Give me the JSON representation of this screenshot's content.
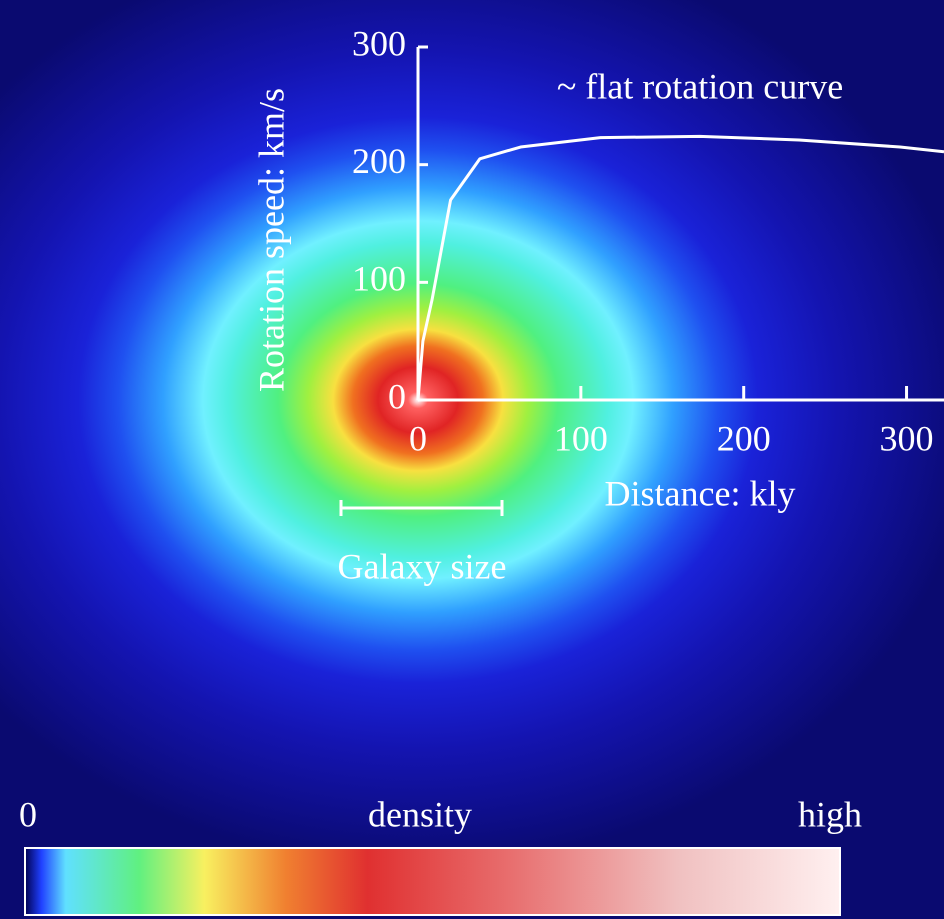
{
  "chart_data": {
    "type": "line",
    "x_label": "Distance: kly",
    "y_label": "Rotation speed:  km/s",
    "annotation": "~ flat rotation curve",
    "scale_bar_label": "Galaxy size",
    "colorbar_labels": [
      "0",
      "density",
      "high"
    ],
    "x": [
      0,
      3,
      8.6,
      20,
      38,
      63,
      112,
      173,
      234,
      296,
      323
    ],
    "series": [
      {
        "name": "rotation curve",
        "color": "#ffffff",
        "values": [
          0,
          50,
          85,
          170,
          205,
          215,
          223,
          224,
          221,
          215,
          211
        ]
      }
    ],
    "xlim": [
      0,
      323
    ],
    "ylim": [
      0,
      300
    ],
    "xticks": [
      0,
      100,
      200,
      300
    ],
    "yticks": [
      0,
      100,
      200,
      300
    ]
  }
}
